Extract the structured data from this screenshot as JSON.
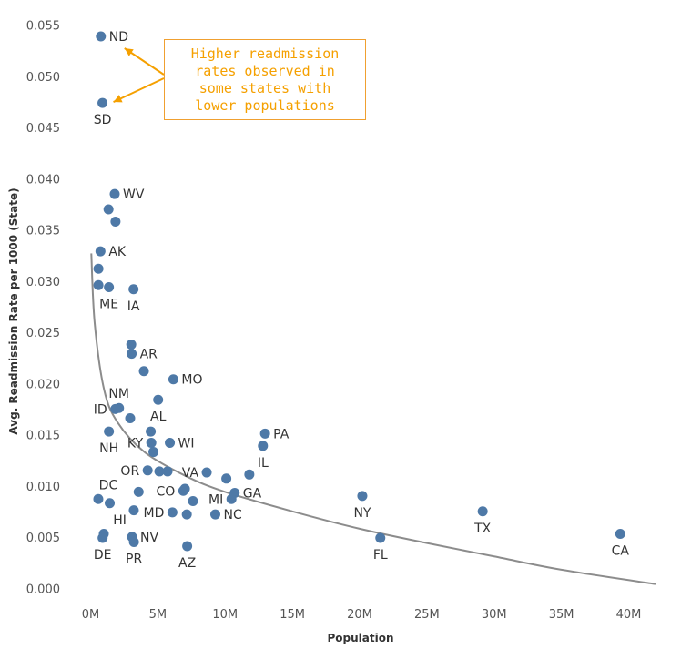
{
  "chart_data": {
    "type": "scatter",
    "xlabel": "Population",
    "ylabel": "Avg. Readmission Rate per 1000 (State)",
    "xlim": [
      -2000000,
      42000000
    ],
    "ylim": [
      -0.0006,
      0.0556
    ],
    "x_ticks": [
      {
        "value": 0,
        "label": "0M"
      },
      {
        "value": 5000000,
        "label": "5M"
      },
      {
        "value": 10000000,
        "label": "10M"
      },
      {
        "value": 15000000,
        "label": "15M"
      },
      {
        "value": 20000000,
        "label": "20M"
      },
      {
        "value": 25000000,
        "label": "25M"
      },
      {
        "value": 30000000,
        "label": "30M"
      },
      {
        "value": 35000000,
        "label": "35M"
      },
      {
        "value": 40000000,
        "label": "40M"
      }
    ],
    "y_ticks": [
      {
        "value": 0.0,
        "label": "0.000"
      },
      {
        "value": 0.005,
        "label": "0.005"
      },
      {
        "value": 0.01,
        "label": "0.010"
      },
      {
        "value": 0.015,
        "label": "0.015"
      },
      {
        "value": 0.02,
        "label": "0.020"
      },
      {
        "value": 0.025,
        "label": "0.025"
      },
      {
        "value": 0.03,
        "label": "0.030"
      },
      {
        "value": 0.035,
        "label": "0.035"
      },
      {
        "value": 0.04,
        "label": "0.040"
      },
      {
        "value": 0.045,
        "label": "0.045"
      },
      {
        "value": 0.05,
        "label": "0.050"
      },
      {
        "value": 0.055,
        "label": "0.055"
      }
    ],
    "grid": false,
    "point_color": "#4e79a7",
    "trend_color": "#8c8c8c",
    "trend_line": {
      "type": "logarithmic",
      "points": [
        {
          "x": 50000,
          "y": 0.0328
        },
        {
          "x": 300000,
          "y": 0.026
        },
        {
          "x": 1000000,
          "y": 0.0195
        },
        {
          "x": 2000000,
          "y": 0.0163
        },
        {
          "x": 4000000,
          "y": 0.0134
        },
        {
          "x": 7000000,
          "y": 0.0111
        },
        {
          "x": 10000000,
          "y": 0.0095
        },
        {
          "x": 15000000,
          "y": 0.0076
        },
        {
          "x": 20000000,
          "y": 0.0059
        },
        {
          "x": 25000000,
          "y": 0.0045
        },
        {
          "x": 30000000,
          "y": 0.0032
        },
        {
          "x": 35000000,
          "y": 0.0019
        },
        {
          "x": 42000000,
          "y": 0.0005
        }
      ]
    },
    "points": [
      {
        "x": 760000,
        "y": 0.054,
        "label": "ND",
        "pos": "right"
      },
      {
        "x": 880000,
        "y": 0.0475,
        "label": "SD",
        "pos": "below"
      },
      {
        "x": 1790000,
        "y": 0.0386,
        "label": "WV",
        "pos": "right"
      },
      {
        "x": 1330000,
        "y": 0.0371,
        "label": "",
        "pos": "none"
      },
      {
        "x": 1850000,
        "y": 0.0359,
        "label": "",
        "pos": "none"
      },
      {
        "x": 730000,
        "y": 0.033,
        "label": "AK",
        "pos": "right"
      },
      {
        "x": 580000,
        "y": 0.0313,
        "label": "",
        "pos": "none"
      },
      {
        "x": 580000,
        "y": 0.0297,
        "label": "",
        "pos": "none"
      },
      {
        "x": 1360000,
        "y": 0.0295,
        "label": "ME",
        "pos": "below"
      },
      {
        "x": 3190000,
        "y": 0.0293,
        "label": "IA",
        "pos": "below"
      },
      {
        "x": 3020000,
        "y": 0.0239,
        "label": "",
        "pos": "none"
      },
      {
        "x": 3050000,
        "y": 0.023,
        "label": "AR",
        "pos": "right"
      },
      {
        "x": 3960000,
        "y": 0.0213,
        "label": "",
        "pos": "none"
      },
      {
        "x": 6150000,
        "y": 0.0205,
        "label": "MO",
        "pos": "right"
      },
      {
        "x": 5020000,
        "y": 0.0185,
        "label": "AL",
        "pos": "below"
      },
      {
        "x": 2110000,
        "y": 0.0177,
        "label": "NM",
        "pos": "above"
      },
      {
        "x": 1840000,
        "y": 0.0176,
        "label": "ID",
        "pos": "left"
      },
      {
        "x": 2940000,
        "y": 0.0167,
        "label": "",
        "pos": "none"
      },
      {
        "x": 1360000,
        "y": 0.0154,
        "label": "NH",
        "pos": "below"
      },
      {
        "x": 4470000,
        "y": 0.0154,
        "label": "",
        "pos": "none"
      },
      {
        "x": 12970000,
        "y": 0.0152,
        "label": "PA",
        "pos": "right"
      },
      {
        "x": 4510000,
        "y": 0.0143,
        "label": "KY",
        "pos": "left"
      },
      {
        "x": 5890000,
        "y": 0.0143,
        "label": "WI",
        "pos": "right"
      },
      {
        "x": 12810000,
        "y": 0.014,
        "label": "IL",
        "pos": "below"
      },
      {
        "x": 4670000,
        "y": 0.0134,
        "label": "",
        "pos": "none"
      },
      {
        "x": 4240000,
        "y": 0.0116,
        "label": "OR",
        "pos": "left"
      },
      {
        "x": 5110000,
        "y": 0.0115,
        "label": "",
        "pos": "none"
      },
      {
        "x": 5720000,
        "y": 0.0115,
        "label": "",
        "pos": "none"
      },
      {
        "x": 8630000,
        "y": 0.0114,
        "label": "VA",
        "pos": "left"
      },
      {
        "x": 11800000,
        "y": 0.0112,
        "label": "",
        "pos": "none"
      },
      {
        "x": 10090000,
        "y": 0.0108,
        "label": "",
        "pos": "none"
      },
      {
        "x": 7010000,
        "y": 0.0098,
        "label": "",
        "pos": "none"
      },
      {
        "x": 6890000,
        "y": 0.0096,
        "label": "CO",
        "pos": "left"
      },
      {
        "x": 3570000,
        "y": 0.0095,
        "label": "",
        "pos": "none"
      },
      {
        "x": 10710000,
        "y": 0.0094,
        "label": "GA",
        "pos": "right"
      },
      {
        "x": 20200000,
        "y": 0.0091,
        "label": "NY",
        "pos": "below"
      },
      {
        "x": 10470000,
        "y": 0.0088,
        "label": "MI",
        "pos": "left"
      },
      {
        "x": 570000,
        "y": 0.0088,
        "label": "DC",
        "pos": "above-right"
      },
      {
        "x": 7610000,
        "y": 0.0086,
        "label": "",
        "pos": "none"
      },
      {
        "x": 1420000,
        "y": 0.0084,
        "label": "HI",
        "pos": "below-right"
      },
      {
        "x": 3210000,
        "y": 0.0077,
        "label": "",
        "pos": "none"
      },
      {
        "x": 29150000,
        "y": 0.0076,
        "label": "TX",
        "pos": "below"
      },
      {
        "x": 6080000,
        "y": 0.0075,
        "label": "MD",
        "pos": "left"
      },
      {
        "x": 7150000,
        "y": 0.0073,
        "label": "",
        "pos": "none"
      },
      {
        "x": 9270000,
        "y": 0.0073,
        "label": "NC",
        "pos": "right"
      },
      {
        "x": 39380000,
        "y": 0.0054,
        "label": "CA",
        "pos": "below"
      },
      {
        "x": 980000,
        "y": 0.0054,
        "label": "",
        "pos": "none"
      },
      {
        "x": 3080000,
        "y": 0.0051,
        "label": "NV",
        "pos": "right"
      },
      {
        "x": 21540000,
        "y": 0.005,
        "label": "FL",
        "pos": "below"
      },
      {
        "x": 890000,
        "y": 0.005,
        "label": "DE",
        "pos": "below"
      },
      {
        "x": 3220000,
        "y": 0.0046,
        "label": "PR",
        "pos": "below"
      },
      {
        "x": 7180000,
        "y": 0.0042,
        "label": "AZ",
        "pos": "below"
      }
    ],
    "annotation": {
      "lines": [
        "Higher readmission",
        "rates observed in",
        "some states with",
        "lower populations"
      ],
      "color": "#f5a000",
      "targets": [
        "ND",
        "SD"
      ]
    }
  }
}
